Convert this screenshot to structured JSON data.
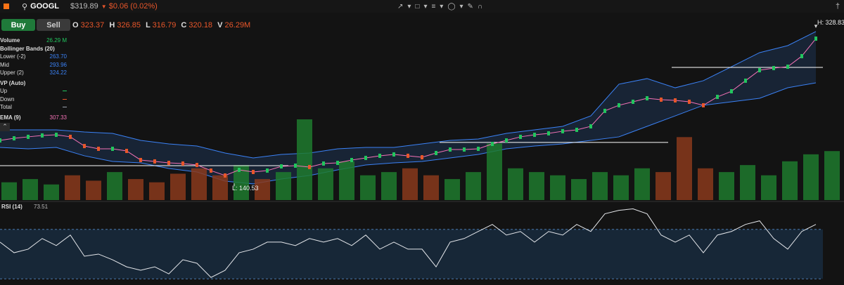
{
  "toolbar": {
    "symbol": "GOOGL",
    "price": "$319.89",
    "change": "$0.06 (0.02%)"
  },
  "buttons": {
    "buy": "Buy",
    "sell": "Sell"
  },
  "ohlc": {
    "o_label": "O",
    "o": "323.37",
    "h_label": "H",
    "h": "326.85",
    "l_label": "L",
    "l": "316.79",
    "c_label": "C",
    "c": "320.18",
    "v_label": "V",
    "v": "26.29M"
  },
  "legend": [
    {
      "label": "Volume",
      "value": "26.29 M",
      "color": "#22c55e"
    },
    {
      "label": "Bollinger Bands (20)"
    },
    {
      "label": "Lower (-2)",
      "value": "263.70",
      "color": "#3b82f6"
    },
    {
      "label": "Mid",
      "value": "293.96",
      "color": "#3b82f6"
    },
    {
      "label": "Upper (2)",
      "value": "324.22",
      "color": "#3b82f6"
    },
    {
      "label": "VP (Auto)"
    },
    {
      "label": "Up",
      "color": "#22c55e"
    },
    {
      "label": "Down",
      "color": "#e8562a"
    },
    {
      "label": "Total",
      "color": "#9ca3af"
    },
    {
      "label": "EMA (9)",
      "value": "307.33",
      "color": "#f472b6"
    }
  ],
  "annotations": {
    "high": "H: 328.83",
    "low": "L: 140.53"
  },
  "rsi_panel": {
    "label": "RSI (14)",
    "value": "73.51"
  },
  "chart_data": [
    {
      "type": "line",
      "name": "price",
      "ylim": [
        120,
        340
      ],
      "closes": [
        193.3,
        195.9,
        197.7,
        199.4,
        200.2,
        197.7,
        186.4,
        183.0,
        183.0,
        180.4,
        169.2,
        167.5,
        165.7,
        164.9,
        163.1,
        156.2,
        150.2,
        157.1,
        154.5,
        156.2,
        161.4,
        162.3,
        160.6,
        164.9,
        165.7,
        169.2,
        171.8,
        174.4,
        176.1,
        174.4,
        172.6,
        177.8,
        182.1,
        182.1,
        183.0,
        189.0,
        193.3,
        197.7,
        200.2,
        202.0,
        204.6,
        206.3,
        210.6,
        229.6,
        236.5,
        240.8,
        245.1,
        243.4,
        242.5,
        240.8,
        236.5,
        246.8,
        253.7,
        266.7,
        279.6,
        282.2,
        283.9,
        296.9,
        318.4
      ],
      "upper": [
        206.3,
        206.3,
        206.3,
        203.7,
        202.0,
        193.3,
        189.0,
        186.4,
        177.8,
        171.8,
        176.1,
        177.8,
        183.0,
        184.7,
        184.7,
        189.0,
        193.3,
        195.1,
        202.0,
        206.3,
        210.6,
        223.5,
        262.4,
        269.3,
        258.0,
        266.7,
        283.9,
        301.2,
        309.8,
        327.1
      ],
      "lower": [
        184.7,
        183.0,
        184.7,
        174.4,
        167.5,
        165.7,
        158.8,
        154.5,
        143.3,
        139.9,
        145.9,
        150.2,
        157.1,
        163.1,
        165.7,
        167.5,
        171.8,
        176.1,
        183.0,
        186.4,
        189.0,
        193.3,
        197.7,
        210.6,
        223.5,
        236.5,
        240.8,
        245.1,
        258.0,
        264.1
      ],
      "poc_levels": [
        283.1,
        190.8,
        162.3
      ],
      "high": 328.83,
      "low": 140.53
    },
    {
      "type": "bar",
      "name": "volume",
      "ylim": [
        0,
        150
      ],
      "values": [
        33,
        39,
        29,
        46,
        36,
        52,
        39,
        33,
        49,
        59,
        46,
        65,
        39,
        52,
        150,
        59,
        72,
        46,
        52,
        59,
        46,
        39,
        52,
        105,
        59,
        52,
        46,
        39,
        52,
        46,
        59,
        52,
        117,
        59,
        52,
        65,
        46,
        72,
        85,
        91
      ]
    },
    {
      "type": "line",
      "name": "rsi",
      "ylim": [
        25,
        92
      ],
      "levels": [
        70,
        30
      ],
      "values": [
        59.7,
        51.1,
        54.0,
        62.6,
        56.9,
        65.4,
        48.3,
        50.0,
        45.4,
        39.7,
        36.9,
        39.7,
        34.0,
        45.4,
        42.6,
        31.1,
        36.9,
        51.1,
        54.0,
        59.7,
        59.7,
        56.9,
        62.6,
        59.7,
        62.6,
        56.9,
        65.4,
        54.0,
        59.7,
        54.0,
        54.0,
        39.7,
        59.7,
        62.6,
        68.3,
        74.0,
        65.4,
        68.3,
        59.7,
        68.3,
        65.4,
        74.0,
        68.3,
        82.6,
        85.4,
        86.6,
        82.6,
        65.4,
        59.7,
        65.4,
        51.1,
        65.4,
        68.3,
        74.0,
        76.9,
        62.6,
        54.0,
        68.3,
        74.0
      ]
    }
  ]
}
